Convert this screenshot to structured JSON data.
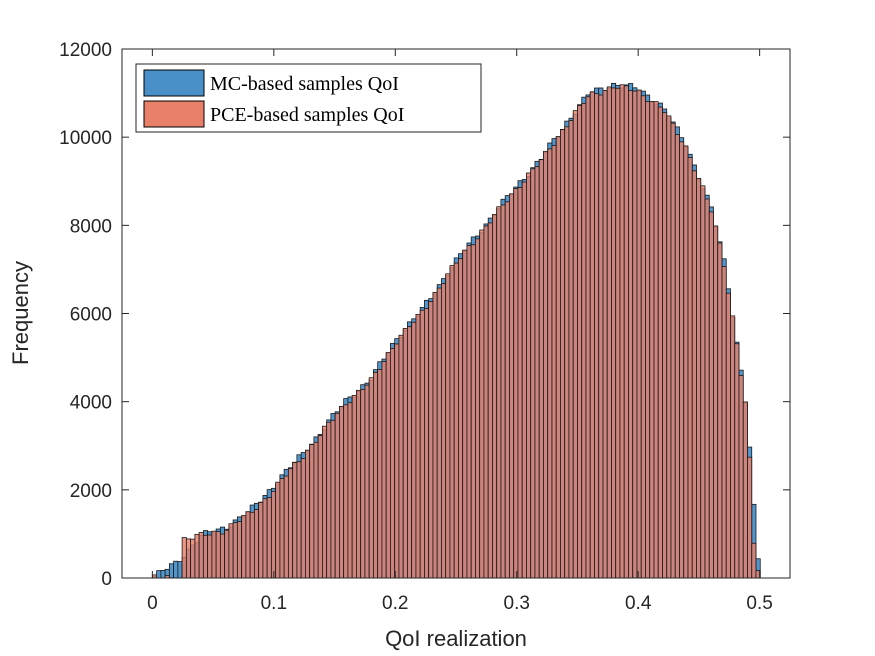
{
  "chart_data": {
    "type": "histogram",
    "title": "",
    "xlabel": "QoI realization",
    "ylabel": "Frequency",
    "xlim": [
      -0.025,
      0.525
    ],
    "ylim": [
      0,
      12000
    ],
    "xticks": [
      0,
      0.1,
      0.2,
      0.3,
      0.4,
      0.5
    ],
    "xtick_labels": [
      "0",
      "0.1",
      "0.2",
      "0.3",
      "0.4",
      "0.5"
    ],
    "yticks": [
      0,
      2000,
      4000,
      6000,
      8000,
      10000,
      12000
    ],
    "ytick_labels": [
      "0",
      "2000",
      "4000",
      "6000",
      "8000",
      "10000",
      "12000"
    ],
    "grid": false,
    "legend_position": "top-left",
    "series": [
      {
        "name": "MC-based samples QoI",
        "color": "#4A90C8",
        "x": [
          0.0,
          0.02,
          0.04,
          0.06,
          0.08,
          0.1,
          0.12,
          0.14,
          0.16,
          0.18,
          0.2,
          0.22,
          0.24,
          0.26,
          0.28,
          0.3,
          0.32,
          0.34,
          0.36,
          0.38,
          0.4,
          0.42,
          0.44,
          0.46,
          0.47,
          0.48,
          0.49,
          0.497,
          0.5
        ],
        "y": [
          0,
          350,
          950,
          1150,
          1500,
          2100,
          2700,
          3350,
          4050,
          4500,
          5400,
          6000,
          6800,
          7550,
          8200,
          8900,
          9500,
          10300,
          11000,
          11200,
          11100,
          10700,
          9800,
          8400,
          7300,
          5600,
          3700,
          900,
          0
        ]
      },
      {
        "name": "PCE-based samples QoI",
        "color": "#E8806A",
        "x": [
          0.0,
          0.023,
          0.024,
          0.04,
          0.06,
          0.08,
          0.1,
          0.12,
          0.14,
          0.16,
          0.18,
          0.2,
          0.22,
          0.24,
          0.26,
          0.28,
          0.3,
          0.32,
          0.34,
          0.36,
          0.38,
          0.4,
          0.42,
          0.44,
          0.46,
          0.47,
          0.48,
          0.49,
          0.495,
          0.5
        ],
        "y": [
          0,
          0,
          880,
          950,
          1100,
          1450,
          2000,
          2650,
          3300,
          4000,
          4450,
          5350,
          5950,
          6750,
          7500,
          8150,
          8850,
          9450,
          10250,
          10950,
          11150,
          11050,
          10650,
          9750,
          8350,
          7250,
          5550,
          3650,
          800,
          0
        ]
      }
    ],
    "bin_width": 0.0035,
    "x_start": 0.0,
    "x_end": 0.4995
  }
}
